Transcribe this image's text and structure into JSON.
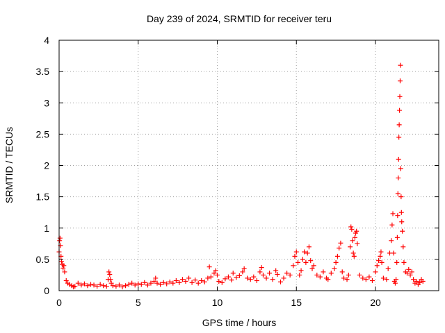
{
  "chart_data": {
    "type": "scatter",
    "title": "Day 239 of 2024, SRMTID for receiver teru",
    "xlabel": "GPS time / hours",
    "ylabel": "SRMTID / TECUs",
    "xlim": [
      0,
      24
    ],
    "ylim": [
      0,
      4
    ],
    "xticks": [
      0,
      5,
      10,
      15,
      20
    ],
    "xtick_labels": [
      "0",
      "5",
      "10",
      "15",
      "20"
    ],
    "yticks": [
      0,
      0.5,
      1,
      1.5,
      2,
      2.5,
      3,
      3.5,
      4
    ],
    "ytick_labels": [
      "0",
      "0.5",
      "1",
      "1.5",
      "2",
      "2.5",
      "3",
      "3.5",
      "4"
    ],
    "grid": true,
    "marker": "plus",
    "series": [
      {
        "name": "SRMTID",
        "color": "#ff0000",
        "points": [
          [
            0.0,
            0.62
          ],
          [
            0.03,
            0.8
          ],
          [
            0.06,
            0.84
          ],
          [
            0.09,
            0.72
          ],
          [
            0.12,
            0.55
          ],
          [
            0.15,
            0.47
          ],
          [
            0.2,
            0.42
          ],
          [
            0.25,
            0.36
          ],
          [
            0.3,
            0.4
          ],
          [
            0.35,
            0.3
          ],
          [
            0.45,
            0.16
          ],
          [
            0.55,
            0.12
          ],
          [
            0.65,
            0.1
          ],
          [
            0.8,
            0.08
          ],
          [
            0.9,
            0.06
          ],
          [
            1.0,
            0.07
          ],
          [
            1.2,
            0.12
          ],
          [
            1.4,
            0.09
          ],
          [
            1.6,
            0.11
          ],
          [
            1.8,
            0.08
          ],
          [
            2.0,
            0.1
          ],
          [
            2.2,
            0.09
          ],
          [
            2.4,
            0.07
          ],
          [
            2.6,
            0.1
          ],
          [
            2.8,
            0.08
          ],
          [
            3.0,
            0.07
          ],
          [
            3.1,
            0.18
          ],
          [
            3.15,
            0.3
          ],
          [
            3.2,
            0.26
          ],
          [
            3.25,
            0.18
          ],
          [
            3.3,
            0.12
          ],
          [
            3.4,
            0.08
          ],
          [
            3.6,
            0.07
          ],
          [
            3.8,
            0.09
          ],
          [
            4.0,
            0.06
          ],
          [
            4.2,
            0.08
          ],
          [
            4.4,
            0.1
          ],
          [
            4.6,
            0.12
          ],
          [
            4.8,
            0.09
          ],
          [
            5.0,
            0.11
          ],
          [
            5.2,
            0.1
          ],
          [
            5.4,
            0.13
          ],
          [
            5.6,
            0.09
          ],
          [
            5.8,
            0.12
          ],
          [
            6.0,
            0.15
          ],
          [
            6.1,
            0.2
          ],
          [
            6.2,
            0.12
          ],
          [
            6.4,
            0.1
          ],
          [
            6.6,
            0.13
          ],
          [
            6.8,
            0.11
          ],
          [
            7.0,
            0.14
          ],
          [
            7.2,
            0.12
          ],
          [
            7.4,
            0.16
          ],
          [
            7.6,
            0.13
          ],
          [
            7.8,
            0.18
          ],
          [
            8.0,
            0.15
          ],
          [
            8.2,
            0.2
          ],
          [
            8.4,
            0.13
          ],
          [
            8.6,
            0.17
          ],
          [
            8.8,
            0.12
          ],
          [
            9.0,
            0.16
          ],
          [
            9.2,
            0.14
          ],
          [
            9.4,
            0.2
          ],
          [
            9.5,
            0.38
          ],
          [
            9.6,
            0.22
          ],
          [
            9.8,
            0.28
          ],
          [
            9.9,
            0.32
          ],
          [
            10.0,
            0.25
          ],
          [
            10.1,
            0.15
          ],
          [
            10.3,
            0.13
          ],
          [
            10.5,
            0.19
          ],
          [
            10.7,
            0.22
          ],
          [
            10.9,
            0.17
          ],
          [
            11.0,
            0.28
          ],
          [
            11.2,
            0.21
          ],
          [
            11.4,
            0.24
          ],
          [
            11.6,
            0.3
          ],
          [
            11.7,
            0.35
          ],
          [
            11.9,
            0.2
          ],
          [
            12.1,
            0.18
          ],
          [
            12.3,
            0.22
          ],
          [
            12.5,
            0.16
          ],
          [
            12.7,
            0.3
          ],
          [
            12.8,
            0.37
          ],
          [
            12.9,
            0.25
          ],
          [
            13.1,
            0.2
          ],
          [
            13.3,
            0.28
          ],
          [
            13.5,
            0.18
          ],
          [
            13.7,
            0.32
          ],
          [
            13.8,
            0.26
          ],
          [
            14.0,
            0.14
          ],
          [
            14.2,
            0.2
          ],
          [
            14.4,
            0.28
          ],
          [
            14.6,
            0.25
          ],
          [
            14.8,
            0.4
          ],
          [
            14.9,
            0.55
          ],
          [
            15.0,
            0.62
          ],
          [
            15.1,
            0.45
          ],
          [
            15.2,
            0.25
          ],
          [
            15.3,
            0.32
          ],
          [
            15.4,
            0.5
          ],
          [
            15.5,
            0.62
          ],
          [
            15.6,
            0.45
          ],
          [
            15.7,
            0.6
          ],
          [
            15.8,
            0.7
          ],
          [
            15.9,
            0.48
          ],
          [
            16.0,
            0.35
          ],
          [
            16.1,
            0.4
          ],
          [
            16.3,
            0.25
          ],
          [
            16.5,
            0.22
          ],
          [
            16.7,
            0.3
          ],
          [
            16.9,
            0.2
          ],
          [
            17.0,
            0.18
          ],
          [
            17.2,
            0.28
          ],
          [
            17.4,
            0.35
          ],
          [
            17.5,
            0.45
          ],
          [
            17.6,
            0.55
          ],
          [
            17.7,
            0.68
          ],
          [
            17.8,
            0.76
          ],
          [
            17.9,
            0.3
          ],
          [
            18.0,
            0.2
          ],
          [
            18.2,
            0.18
          ],
          [
            18.3,
            0.25
          ],
          [
            18.4,
            0.7
          ],
          [
            18.45,
            1.02
          ],
          [
            18.5,
            0.98
          ],
          [
            18.55,
            0.8
          ],
          [
            18.6,
            0.6
          ],
          [
            18.65,
            0.55
          ],
          [
            18.7,
            0.85
          ],
          [
            18.75,
            0.92
          ],
          [
            18.8,
            0.95
          ],
          [
            18.85,
            0.75
          ],
          [
            19.0,
            0.25
          ],
          [
            19.2,
            0.2
          ],
          [
            19.4,
            0.18
          ],
          [
            19.6,
            0.22
          ],
          [
            19.8,
            0.16
          ],
          [
            20.0,
            0.3
          ],
          [
            20.1,
            0.4
          ],
          [
            20.2,
            0.48
          ],
          [
            20.3,
            0.55
          ],
          [
            20.35,
            0.62
          ],
          [
            20.4,
            0.45
          ],
          [
            20.5,
            0.2
          ],
          [
            20.7,
            0.18
          ],
          [
            20.8,
            0.35
          ],
          [
            20.9,
            0.6
          ],
          [
            21.0,
            0.8
          ],
          [
            21.05,
            1.05
          ],
          [
            21.1,
            1.23
          ],
          [
            21.15,
            0.6
          ],
          [
            21.2,
            0.15
          ],
          [
            21.25,
            0.12
          ],
          [
            21.3,
            0.18
          ],
          [
            21.35,
            0.45
          ],
          [
            21.38,
            0.85
          ],
          [
            21.4,
            1.2
          ],
          [
            21.42,
            1.55
          ],
          [
            21.44,
            1.8
          ],
          [
            21.46,
            2.1
          ],
          [
            21.48,
            2.45
          ],
          [
            21.5,
            2.65
          ],
          [
            21.52,
            2.88
          ],
          [
            21.54,
            3.1
          ],
          [
            21.56,
            3.35
          ],
          [
            21.58,
            3.6
          ],
          [
            21.6,
            1.95
          ],
          [
            21.62,
            1.5
          ],
          [
            21.64,
            1.25
          ],
          [
            21.66,
            1.1
          ],
          [
            21.7,
            0.95
          ],
          [
            21.75,
            0.7
          ],
          [
            21.8,
            0.45
          ],
          [
            21.9,
            0.3
          ],
          [
            22.0,
            0.28
          ],
          [
            22.1,
            0.34
          ],
          [
            22.2,
            0.25
          ],
          [
            22.3,
            0.3
          ],
          [
            22.4,
            0.18
          ],
          [
            22.5,
            0.12
          ],
          [
            22.6,
            0.15
          ],
          [
            22.7,
            0.1
          ],
          [
            22.8,
            0.13
          ],
          [
            22.9,
            0.18
          ],
          [
            23.0,
            0.15
          ]
        ]
      }
    ]
  }
}
